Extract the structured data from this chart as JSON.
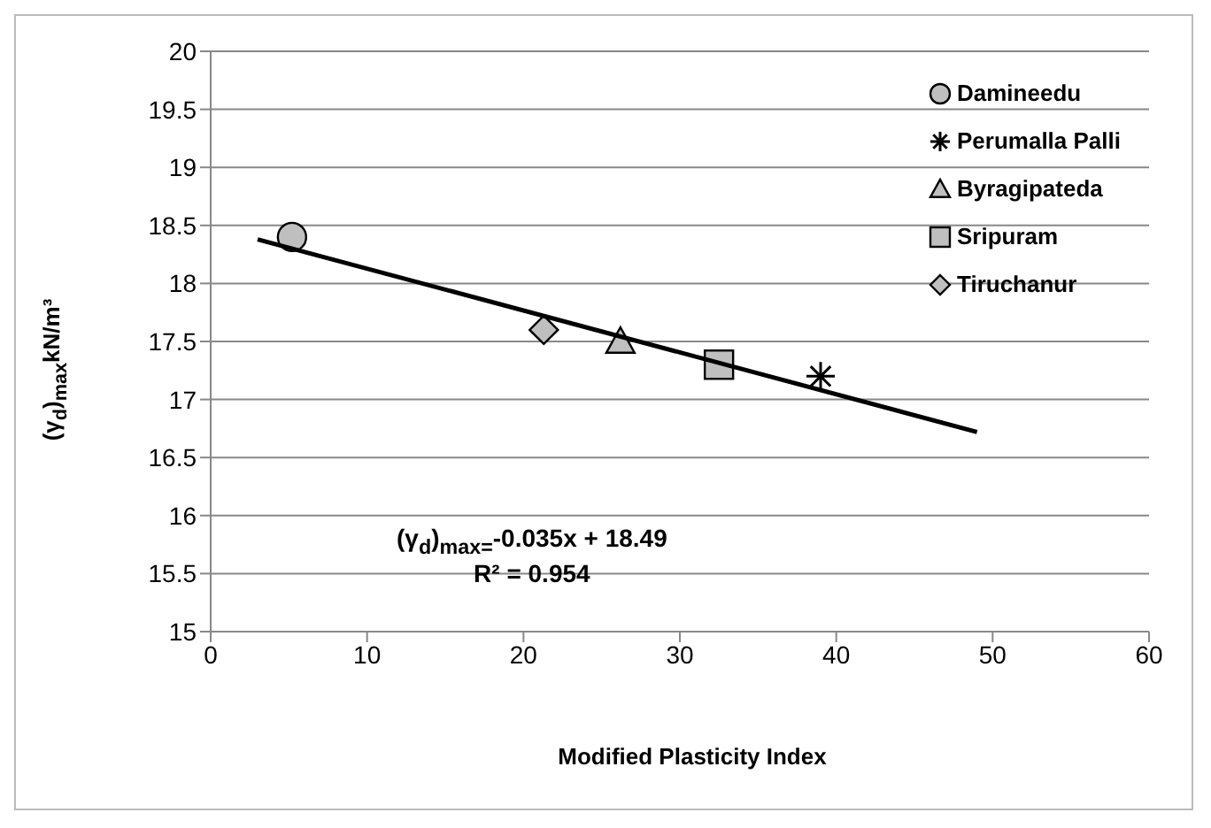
{
  "chart_data": {
    "type": "scatter",
    "xlabel": "Modified Plasticity Index",
    "ylabel": "(γ$_{d}$)$_{max}$kN/m³",
    "xlim": [
      0,
      60
    ],
    "xticks": [
      0,
      10,
      20,
      30,
      40,
      50,
      60
    ],
    "ylim": [
      15,
      20
    ],
    "yticks": [
      15,
      15.5,
      16,
      16.5,
      17,
      17.5,
      18,
      18.5,
      19,
      19.5,
      20
    ],
    "grid": "y",
    "legend": "top right",
    "series": [
      {
        "name": "Damineedu",
        "marker": "circle",
        "color": "#bfbfbf",
        "x": [
          5.2
        ],
        "values": [
          18.4
        ]
      },
      {
        "name": "Perumalla Palli",
        "marker": "cross",
        "color": "#000000",
        "x": [
          39
        ],
        "values": [
          17.2
        ]
      },
      {
        "name": "Byragipateda",
        "marker": "triangle",
        "color": "#bfbfbf",
        "x": [
          26.2
        ],
        "values": [
          17.5
        ]
      },
      {
        "name": "Sripuram",
        "marker": "square",
        "color": "#bfbfbf",
        "x": [
          32.5
        ],
        "values": [
          17.3
        ]
      },
      {
        "name": "Tiruchanur",
        "marker": "diamond",
        "color": "#bfbfbf",
        "x": [
          21.3
        ],
        "values": [
          17.6
        ]
      },
      {
        "type": "line",
        "marker": "none",
        "color": "#000000",
        "x": [
          3,
          49
        ],
        "values": [
          18.38,
          16.72
        ]
      }
    ],
    "annotations": [
      "(γ$_{d}$)$_{max=}$-0.035x + 18.49",
      "R² = 0.954"
    ]
  }
}
